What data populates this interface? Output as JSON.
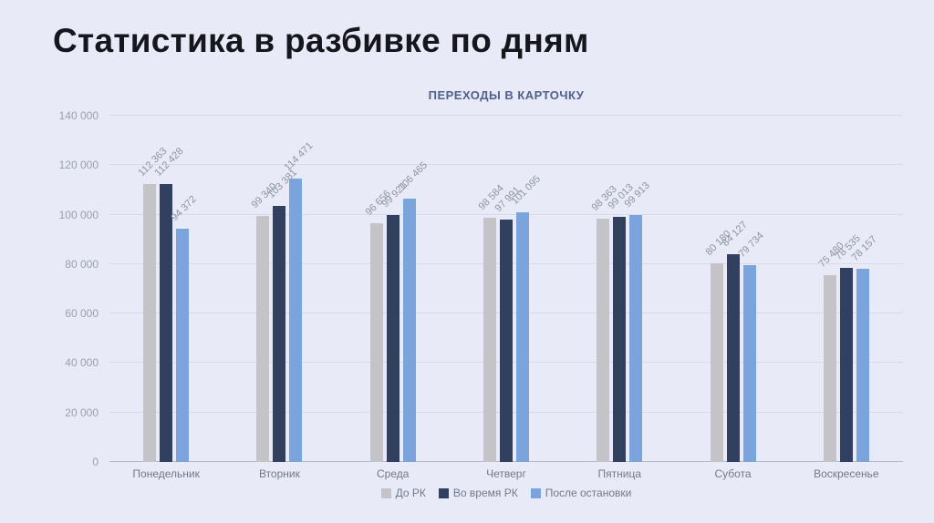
{
  "page_title": "Статистика в разбивке по дням",
  "chart_data": {
    "type": "bar",
    "title": "ПЕРЕХОДЫ В КАРТОЧКУ",
    "categories": [
      "Понедельник",
      "Вторник",
      "Среда",
      "Четверг",
      "Пятница",
      "Субота",
      "Воскресенье"
    ],
    "series": [
      {
        "name": "До РК",
        "color": "#c4c4c8",
        "values": [
          112363,
          99340,
          96656,
          98584,
          98363,
          80180,
          75480
        ],
        "labels": [
          "112 363",
          "99 340",
          "96 656",
          "98 584",
          "98 363",
          "80 180",
          "75 480"
        ]
      },
      {
        "name": "Во время РК",
        "color": "#32405f",
        "values": [
          112428,
          103381,
          99921,
          97991,
          99013,
          84127,
          78535
        ],
        "labels": [
          "112 428",
          "103 381",
          "99 921",
          "97 991",
          "99 013",
          "84 127",
          "78 535"
        ]
      },
      {
        "name": "После остановки",
        "color": "#7ba4dc",
        "values": [
          94372,
          114471,
          106465,
          101095,
          99913,
          79734,
          78157
        ],
        "labels": [
          "94 372",
          "114 471",
          "106 465",
          "101 095",
          "99 913",
          "79 734",
          "78 157"
        ]
      }
    ],
    "ylim": [
      0,
      140000
    ],
    "ytick_step": 20000,
    "ytick_labels": [
      "0",
      "20 000",
      "40 000",
      "60 000",
      "80 000",
      "100 000",
      "120 000",
      "140 000"
    ],
    "grid": true,
    "legend_position": "bottom"
  }
}
